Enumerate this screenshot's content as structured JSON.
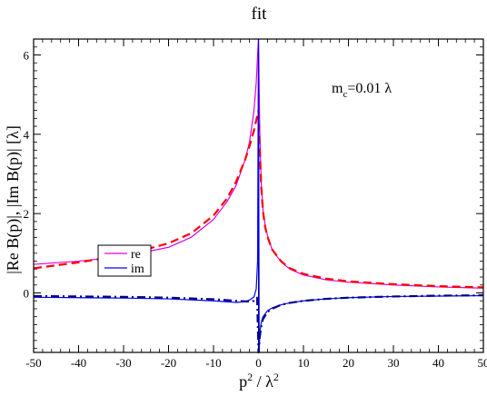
{
  "chart_data": {
    "type": "line",
    "title": "fit",
    "xlabel_main": "p",
    "xlabel_sup1": "2",
    "xlabel_sep": " / λ",
    "xlabel_sup2": "2",
    "ylabel": "|Re B(p)|, |Im B(p)| [λ]",
    "annotation_main": "m",
    "annotation_sub": "c",
    "annotation_rest": "=0.01 λ",
    "xlim": [
      -50,
      50
    ],
    "ylim": [
      -1.5,
      6.4
    ],
    "xticks": [
      -50,
      -40,
      -30,
      -20,
      -10,
      0,
      10,
      20,
      30,
      40,
      50
    ],
    "yticks": [
      0,
      2,
      4,
      6
    ],
    "legend": {
      "placement": "middle-left",
      "entries": [
        "re",
        "im"
      ]
    },
    "colors": {
      "re": "#e000e0",
      "re_fit": "#ff0000",
      "im": "#0000ff",
      "im_fit": "#00008b"
    },
    "series": [
      {
        "name": "re",
        "style": "solid",
        "x": [
          -50,
          -40,
          -30,
          -20,
          -15,
          -10,
          -7,
          -5,
          -3,
          -2,
          -1,
          -0.5,
          -0.2,
          0
        ],
        "y": [
          0.72,
          0.8,
          0.92,
          1.15,
          1.4,
          1.85,
          2.3,
          2.7,
          3.35,
          3.8,
          4.6,
          5.3,
          6.0,
          6.4
        ]
      },
      {
        "name": "re fit",
        "style": "dashed",
        "x": [
          -50,
          -40,
          -30,
          -20,
          -15,
          -10,
          -7,
          -5,
          -3,
          -2,
          -1,
          -0.5,
          0
        ],
        "y": [
          0.62,
          0.77,
          0.95,
          1.25,
          1.5,
          1.95,
          2.38,
          2.8,
          3.35,
          3.7,
          4.1,
          4.35,
          4.6
        ]
      },
      {
        "name": "re",
        "style": "solid",
        "x": [
          0,
          0.3,
          0.6,
          1,
          1.5,
          2,
          3,
          5,
          7,
          10,
          15,
          20,
          30,
          40,
          50
        ],
        "y": [
          6.4,
          4.0,
          2.8,
          2.1,
          1.7,
          1.45,
          1.1,
          0.78,
          0.6,
          0.45,
          0.33,
          0.27,
          0.2,
          0.15,
          0.12
        ]
      },
      {
        "name": "re fit",
        "style": "dashed",
        "x": [
          0,
          0.3,
          0.6,
          1,
          1.5,
          2,
          3,
          5,
          7,
          10,
          15,
          20,
          30,
          40,
          50
        ],
        "y": [
          4.6,
          3.6,
          2.7,
          2.05,
          1.65,
          1.42,
          1.1,
          0.8,
          0.62,
          0.48,
          0.36,
          0.29,
          0.22,
          0.17,
          0.14
        ]
      },
      {
        "name": "im",
        "style": "solid",
        "x": [
          -50,
          -40,
          -30,
          -20,
          -10,
          -5,
          -3,
          -2,
          -1,
          -0.5,
          -0.2,
          0,
          0.15,
          0.3,
          0.6,
          1,
          2,
          3,
          5,
          7,
          10,
          15,
          20,
          30,
          40,
          50
        ],
        "y": [
          -0.11,
          -0.12,
          -0.13,
          -0.15,
          -0.2,
          -0.24,
          -0.22,
          -0.18,
          -0.1,
          0.1,
          0.8,
          6.4,
          -1.5,
          -1.0,
          -0.75,
          -0.6,
          -0.45,
          -0.38,
          -0.3,
          -0.25,
          -0.2,
          -0.15,
          -0.12,
          -0.09,
          -0.08,
          -0.07
        ]
      },
      {
        "name": "im fit",
        "style": "dashdot",
        "x": [
          -50,
          -40,
          -30,
          -20,
          -10,
          -5,
          -2,
          -1,
          -0.3,
          0,
          0.3,
          0.6,
          1,
          2,
          3,
          5,
          7,
          10,
          15,
          20,
          30,
          40,
          50
        ],
        "y": [
          -0.08,
          -0.09,
          -0.1,
          -0.12,
          -0.16,
          -0.2,
          -0.22,
          -0.2,
          -0.12,
          -1.5,
          -1.1,
          -0.85,
          -0.66,
          -0.48,
          -0.4,
          -0.3,
          -0.25,
          -0.2,
          -0.15,
          -0.12,
          -0.09,
          -0.07,
          -0.06
        ]
      }
    ]
  }
}
